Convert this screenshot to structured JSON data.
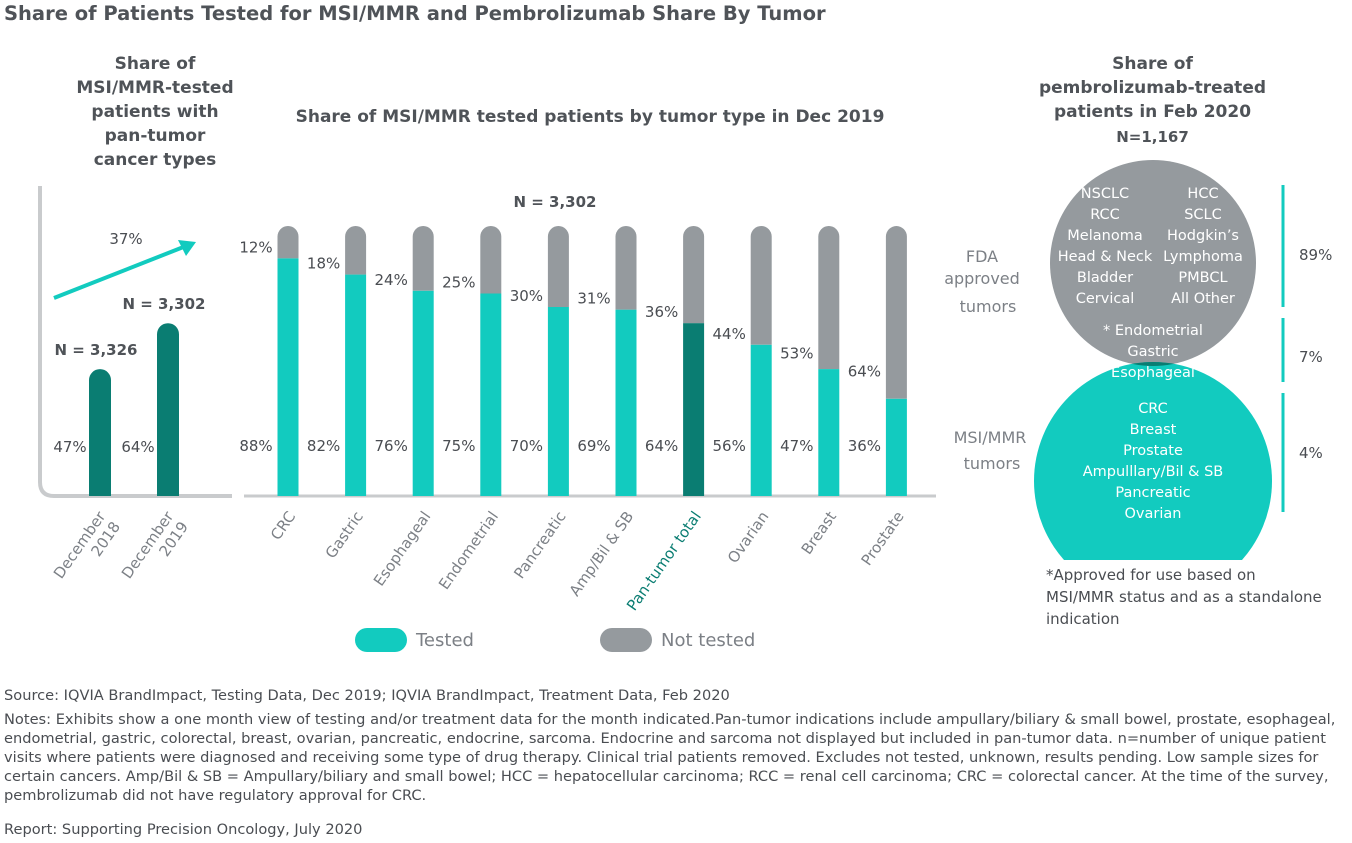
{
  "title": "Share of Patients Tested for MSI/MMR and Pembrolizumab Share By Tumor",
  "colors": {
    "tested": "#12cbbf",
    "not_tested": "#959a9e",
    "dark_teal": "#0a7d72",
    "text": "#4a4d52",
    "title": "#4f5358"
  },
  "left_panel": {
    "title_lines": [
      "Share of",
      "MSI/MMR-tested",
      "patients with",
      "pan-tumor",
      "cancer types"
    ],
    "growth_label": "37%",
    "chart_data": {
      "type": "bar",
      "categories": [
        "December 2018",
        "December 2019"
      ],
      "category_lines": [
        [
          "December",
          "2018"
        ],
        [
          "December",
          "2019"
        ]
      ],
      "values": [
        47,
        64
      ],
      "value_labels": [
        "47%",
        "64%"
      ],
      "n_labels": [
        "N = 3,326",
        "N = 3,302"
      ],
      "ylim": [
        0,
        100
      ]
    }
  },
  "middle_panel": {
    "title": "Share of MSI/MMR tested patients by tumor type in Dec 2019",
    "n_label": "N = 3,302",
    "chart_data": {
      "type": "bar",
      "stacked": true,
      "title": "Share of MSI/MMR tested patients by tumor type in Dec 2019",
      "categories": [
        "CRC",
        "Gastric",
        "Esophageal",
        "Endometrial",
        "Pancreatic",
        "Amp/Bil & SB",
        "Pan-tumor total",
        "Ovarian",
        "Breast",
        "Prostate"
      ],
      "highlight": "Pan-tumor total",
      "series": [
        {
          "name": "Tested",
          "values": [
            88,
            82,
            76,
            75,
            70,
            69,
            64,
            56,
            47,
            36
          ],
          "labels": [
            "88%",
            "82%",
            "76%",
            "75%",
            "70%",
            "69%",
            "64%",
            "56%",
            "47%",
            "36%"
          ]
        },
        {
          "name": "Not tested",
          "values": [
            12,
            18,
            24,
            25,
            30,
            31,
            36,
            44,
            53,
            64
          ],
          "labels": [
            "12%",
            "18%",
            "24%",
            "25%",
            "30%",
            "31%",
            "36%",
            "44%",
            "53%",
            "64%"
          ]
        }
      ],
      "ylim": [
        0,
        100
      ]
    },
    "legend": {
      "tested": "Tested",
      "not_tested": "Not tested"
    }
  },
  "right_panel": {
    "title_lines": [
      "Share of",
      "pembrolizumab-treated",
      "patients in Feb 2020"
    ],
    "n_label": "N=1,167",
    "fda_label": [
      "FDA",
      "approved",
      "tumors"
    ],
    "msi_label": [
      "MSI/MMR",
      "tumors"
    ],
    "fda_left": [
      "NSCLC",
      "RCC",
      "Melanoma",
      "Head & Neck",
      "Bladder",
      "Cervical"
    ],
    "fda_right": [
      "HCC",
      "SCLC",
      "Hodgkin’s",
      "Lymphoma",
      "PMBCL",
      "All Other"
    ],
    "overlap": [
      "* Endometrial",
      "Gastric",
      "Esophageal"
    ],
    "msi_list": [
      "CRC",
      "Breast",
      "Prostate",
      "Ampulllary/Bil & SB",
      "Pancreatic",
      "Ovarian"
    ],
    "shares": {
      "fda": "89%",
      "overlap": "7%",
      "msi": "4%"
    },
    "footnote": "*Approved for use based on MSI/MMR status and as a standalone indication"
  },
  "source": "Source: IQVIA BrandImpact, Testing Data, Dec 2019; IQVIA BrandImpact, Treatment Data, Feb 2020",
  "notes": "Notes: Exhibits show a one month view of testing and/or treatment data for the month indicated.Pan-tumor indications include ampullary/biliary & small bowel, prostate, esophageal, endometrial, gastric, colorectal, breast, ovarian, pancreatic, endocrine, sarcoma. Endocrine and sarcoma not displayed but included in pan-tumor data. n=number of unique patient visits where patients were diagnosed and receiving some type of drug therapy. Clinical trial patients removed. Excludes not tested, unknown, results pending. Low sample sizes for certain cancers. Amp/Bil & SB = Ampullary/biliary and small bowel; HCC = hepatocellular carcinoma; RCC = renal cell carcinoma; CRC = colorectal cancer. At the time of the survey, pembrolizumab did not have regulatory approval for CRC.",
  "report": "Report: Supporting Precision Oncology, July 2020"
}
